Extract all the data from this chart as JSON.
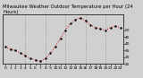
{
  "hours": [
    0,
    1,
    2,
    3,
    4,
    5,
    6,
    7,
    8,
    9,
    10,
    11,
    12,
    13,
    14,
    15,
    16,
    17,
    18,
    19,
    20,
    21,
    22,
    23
  ],
  "temps": [
    38,
    36,
    35,
    33,
    31,
    29,
    28,
    27,
    29,
    33,
    38,
    44,
    50,
    55,
    58,
    59,
    57,
    54,
    52,
    51,
    50,
    52,
    53,
    52
  ],
  "title": "Milwaukee Weather Outdoor Temperature per Hour (24 Hours)",
  "bg_color": "#d0d0d0",
  "line_color": "#cc0000",
  "dot_color": "#000000",
  "grid_color": "#888888",
  "ylim_min": 25,
  "ylim_max": 62,
  "yticks": [
    25,
    30,
    35,
    40,
    45,
    50
  ],
  "ytick_labels": [
    "25",
    "30",
    "35",
    "40",
    "45",
    "50"
  ],
  "vgrid_hours": [
    4,
    8,
    12,
    16,
    20
  ],
  "title_fontsize": 3.8,
  "tick_fontsize": 3.2,
  "line_width": 0.7,
  "dot_size": 1.5
}
